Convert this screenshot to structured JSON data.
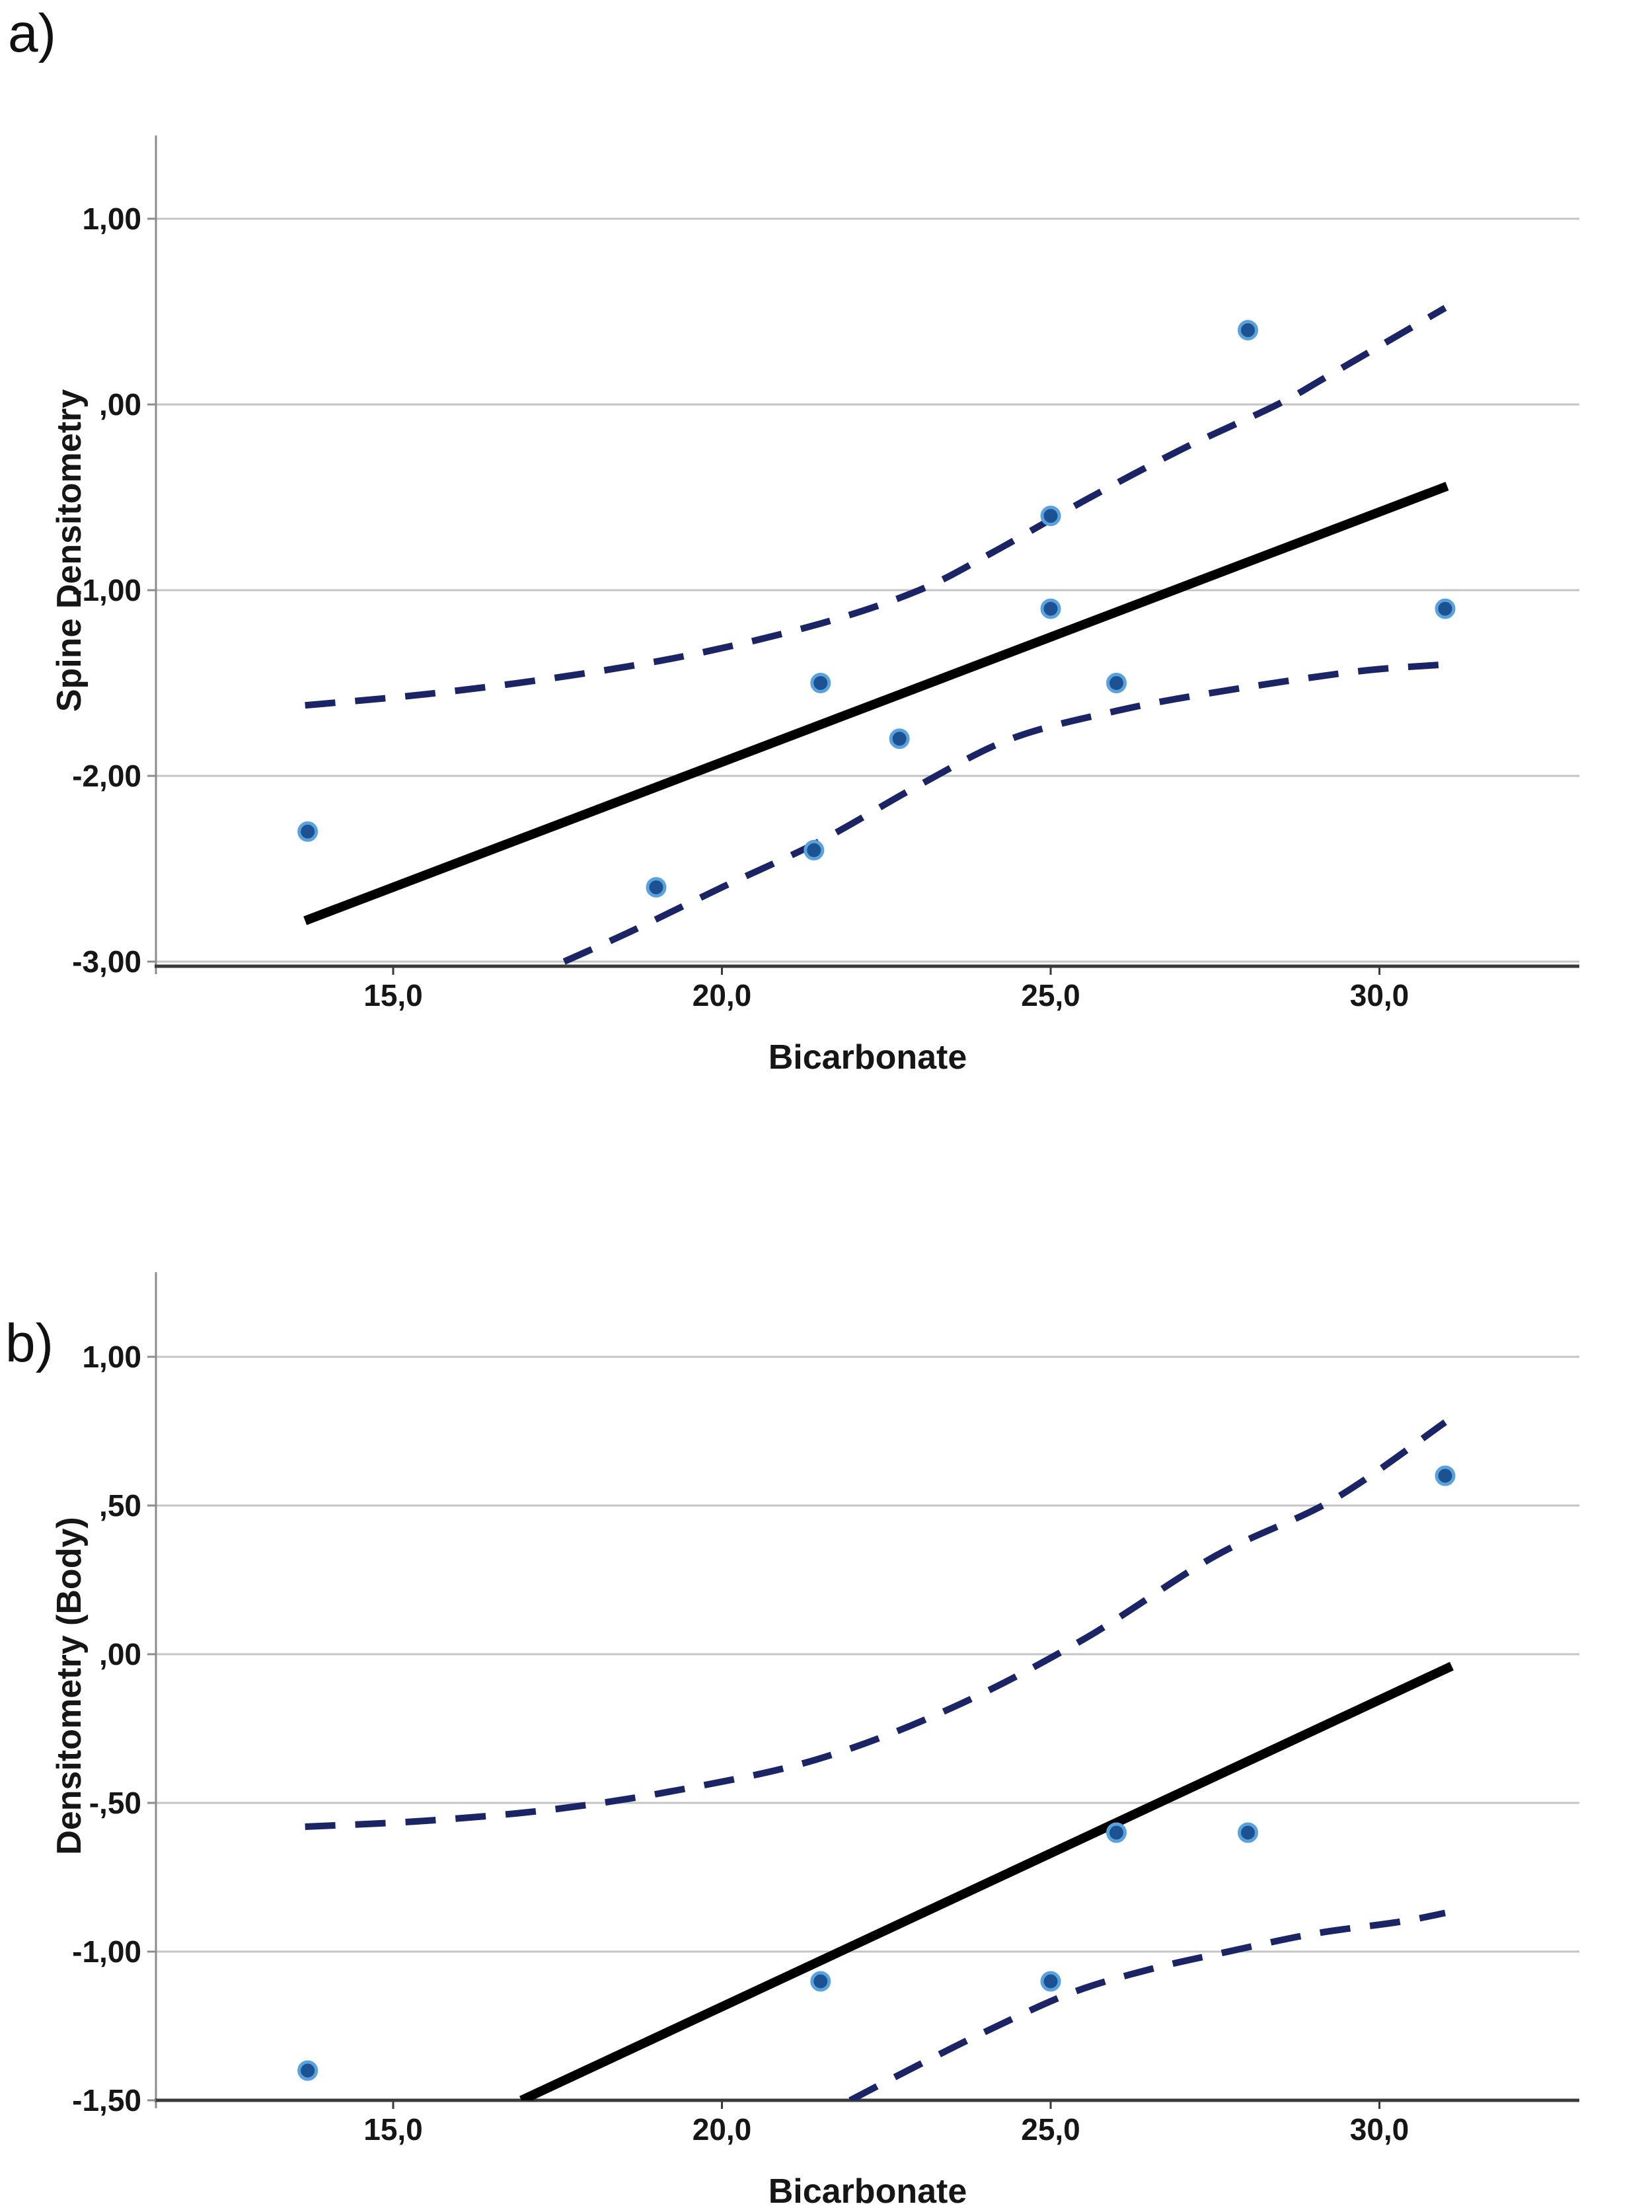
{
  "page": {
    "background": "#ffffff"
  },
  "chart_data": [
    {
      "type": "scatter",
      "panel_label": "a)",
      "xlabel": "Bicarbonate",
      "ylabel": "Spine Densitometry",
      "xlim": [
        11.4,
        33.0
      ],
      "ylim": [
        -3.03,
        1.45
      ],
      "grid": "horizontal",
      "legend": "none",
      "xticks": [
        {
          "value": 15,
          "label": "15,0"
        },
        {
          "value": 20,
          "label": "20,0"
        },
        {
          "value": 25,
          "label": "25,0"
        },
        {
          "value": 30,
          "label": "30,0"
        }
      ],
      "yticks": [
        {
          "value": 1,
          "label": "1,00"
        },
        {
          "value": 0,
          "label": ",00"
        },
        {
          "value": -1,
          "label": "-1,00"
        },
        {
          "value": -2,
          "label": "-2,00"
        },
        {
          "value": -3,
          "label": "-3,00"
        }
      ],
      "points": [
        [
          13.7,
          -2.3
        ],
        [
          19.0,
          -2.6
        ],
        [
          21.4,
          -2.4
        ],
        [
          21.5,
          -1.5
        ],
        [
          22.7,
          -1.8
        ],
        [
          25.0,
          -0.6
        ],
        [
          25.0,
          -1.1
        ],
        [
          26.0,
          -1.5
        ],
        [
          28.0,
          0.4
        ],
        [
          31.0,
          -1.1
        ]
      ],
      "fit_line": {
        "x1": 13.66,
        "y1": -2.78,
        "x2": 31.03,
        "y2": -0.44
      },
      "ci_upper": [
        [
          13.66,
          -1.62
        ],
        [
          15.5,
          -1.56
        ],
        [
          17.5,
          -1.47
        ],
        [
          19.5,
          -1.35
        ],
        [
          21.5,
          -1.18
        ],
        [
          23.0,
          -1.0
        ],
        [
          24.1,
          -0.8
        ],
        [
          25.5,
          -0.52
        ],
        [
          27.0,
          -0.24
        ],
        [
          28.45,
          0.0
        ],
        [
          29.25,
          0.16
        ],
        [
          31.0,
          0.52
        ]
      ],
      "ci_lower": [
        [
          17.6,
          -3.0
        ],
        [
          18.6,
          -2.84
        ],
        [
          20.0,
          -2.6
        ],
        [
          21.5,
          -2.35
        ],
        [
          23.0,
          -2.05
        ],
        [
          24.4,
          -1.8
        ],
        [
          26.0,
          -1.65
        ],
        [
          27.5,
          -1.55
        ],
        [
          29.6,
          -1.44
        ],
        [
          31.0,
          -1.4
        ]
      ],
      "colors": {
        "point_fill": "#1c5291",
        "point_edge": "#5aa2dd",
        "ci": "#1b2566",
        "fit": "#000000",
        "grid": "#c4c4c4",
        "axis_y": "#8c8c8c",
        "axis_x": "#3a3a3a",
        "text": "#161616"
      }
    },
    {
      "type": "scatter",
      "panel_label": "b)",
      "xlabel": "Bicarbonate",
      "ylabel": "Densitometry (Body)",
      "xlim": [
        11.4,
        33.0
      ],
      "ylim": [
        -1.5,
        1.28
      ],
      "grid": "horizontal",
      "legend": "none",
      "xticks": [
        {
          "value": 15,
          "label": "15,0"
        },
        {
          "value": 20,
          "label": "20,0"
        },
        {
          "value": 25,
          "label": "25,0"
        },
        {
          "value": 30,
          "label": "30,0"
        }
      ],
      "yticks": [
        {
          "value": 1,
          "label": "1,00"
        },
        {
          "value": 0.5,
          "label": ",50"
        },
        {
          "value": 0,
          "label": ",00"
        },
        {
          "value": -0.5,
          "label": "-,50"
        },
        {
          "value": -1,
          "label": "-1,00"
        },
        {
          "value": -1.5,
          "label": "-1,50"
        }
      ],
      "points": [
        [
          13.7,
          -1.4
        ],
        [
          21.5,
          -1.1
        ],
        [
          25.0,
          -1.1
        ],
        [
          26.0,
          -0.6
        ],
        [
          28.0,
          -0.6
        ],
        [
          31.0,
          0.6
        ]
      ],
      "fit_line": {
        "x1": 16.95,
        "y1": -1.5,
        "x2": 31.1,
        "y2": -0.04
      },
      "ci_upper": [
        [
          13.66,
          -0.58
        ],
        [
          15.5,
          -0.56
        ],
        [
          17.5,
          -0.52
        ],
        [
          19.5,
          -0.45
        ],
        [
          21.5,
          -0.35
        ],
        [
          23.5,
          -0.18
        ],
        [
          25.5,
          0.05
        ],
        [
          27.5,
          0.33
        ],
        [
          29.3,
          0.52
        ],
        [
          31.0,
          0.78
        ]
      ],
      "ci_lower": [
        [
          21.95,
          -1.5
        ],
        [
          23.0,
          -1.38
        ],
        [
          24.0,
          -1.27
        ],
        [
          25.3,
          -1.14
        ],
        [
          26.5,
          -1.06
        ],
        [
          27.7,
          -1.0
        ],
        [
          29.0,
          -0.94
        ],
        [
          30.3,
          -0.9
        ],
        [
          31.0,
          -0.87
        ]
      ],
      "colors": {
        "point_fill": "#1c5291",
        "point_edge": "#5aa2dd",
        "ci": "#1b2566",
        "fit": "#000000",
        "grid": "#c4c4c4",
        "axis_y": "#8c8c8c",
        "axis_x": "#3a3a3a",
        "text": "#161616"
      }
    }
  ]
}
